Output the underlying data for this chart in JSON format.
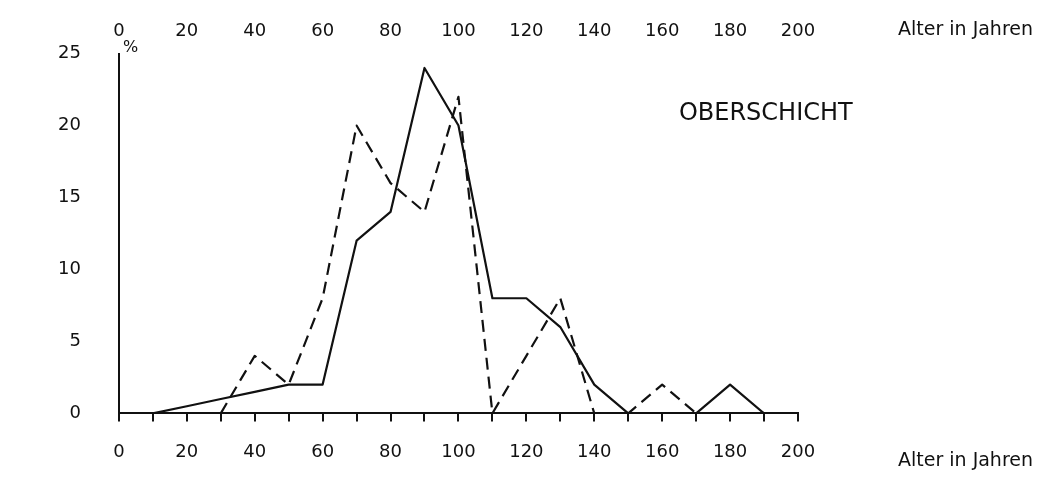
{
  "chart_data": {
    "type": "line",
    "xlabel": "Alter in Jahren",
    "x2label": "Alter in Jahren",
    "ylabel": "%",
    "annotations": [
      "OBERSCHICHT"
    ],
    "xlim": [
      0,
      200
    ],
    "xticks": [
      0,
      {
        "value": 10,
        "label": null
      },
      20,
      {
        "value": 30,
        "label": null
      },
      40,
      {
        "value": 50,
        "label": null
      },
      60,
      {
        "value": 70,
        "label": null
      },
      80,
      {
        "value": 90,
        "label": null
      },
      100,
      {
        "value": 110,
        "label": null
      },
      120,
      {
        "value": 130,
        "label": null
      },
      140,
      {
        "value": 150,
        "label": null
      },
      160,
      {
        "value": 170,
        "label": null
      },
      180,
      {
        "value": 190,
        "label": null
      },
      200
    ],
    "x2lim": [
      0,
      200
    ],
    "x2ticks": [
      0,
      20,
      40,
      60,
      80,
      100,
      120,
      140,
      160,
      180,
      200
    ],
    "ylim": [
      0,
      25
    ],
    "yticks": [
      0,
      5,
      10,
      15,
      20,
      25
    ],
    "grid": false,
    "legend": false,
    "marker": "none",
    "series": [
      {
        "color": "#111111",
        "line_style": "solid",
        "x": [
          10,
          20,
          30,
          40,
          50,
          60,
          70,
          80,
          90,
          100,
          110,
          120,
          130,
          140,
          150,
          160,
          170,
          180,
          190
        ],
        "values": [
          0,
          0.5,
          1,
          1.5,
          2,
          2,
          12,
          14,
          24,
          20,
          8,
          8,
          6,
          2,
          0,
          0,
          0,
          2,
          0
        ]
      },
      {
        "color": "#111111",
        "line_style": "dashed",
        "x": [
          30,
          40,
          50,
          60,
          70,
          80,
          90,
          100,
          110,
          120,
          130,
          140,
          150,
          160,
          170
        ],
        "values": [
          0,
          4,
          2,
          8,
          20,
          16,
          14,
          22,
          0,
          4,
          8,
          0,
          0,
          2,
          0
        ]
      }
    ]
  }
}
